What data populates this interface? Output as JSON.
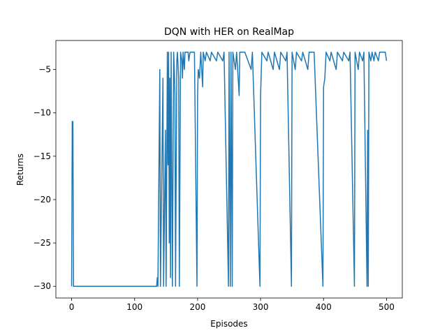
{
  "chart_data": {
    "type": "line",
    "title": "DQN with HER on RealMap",
    "xlabel": "Episodes",
    "ylabel": "Returns",
    "color": "#1f77b4",
    "x": [
      0,
      1,
      2,
      3,
      135,
      136,
      137,
      140,
      141,
      145,
      146,
      149,
      150,
      152,
      153,
      154,
      155,
      156,
      157,
      158,
      160,
      162,
      163,
      164,
      165,
      167,
      168,
      170,
      171,
      173,
      175,
      176,
      177,
      179,
      180,
      185,
      186,
      188,
      195,
      199,
      200,
      201,
      203,
      205,
      208,
      209,
      212,
      214,
      220,
      222,
      230,
      232,
      240,
      242,
      249,
      250,
      252,
      253,
      255,
      256,
      260,
      262,
      266,
      267,
      275,
      285,
      287,
      299,
      300,
      302,
      310,
      312,
      320,
      322,
      330,
      332,
      340,
      342,
      349,
      350,
      355,
      357,
      365,
      367,
      375,
      377,
      385,
      399,
      400,
      402,
      404,
      410,
      412,
      420,
      422,
      430,
      432,
      440,
      442,
      449,
      450,
      455,
      457,
      462,
      464,
      469,
      470,
      471,
      472,
      475,
      477,
      480,
      482,
      487,
      489,
      495,
      498,
      500
    ],
    "values": [
      -30,
      -11,
      -11,
      -30,
      -30,
      -29,
      -30,
      -5,
      -30,
      -6,
      -30,
      -12,
      -30,
      -3,
      -16,
      -3,
      -25,
      -6,
      -29,
      -3,
      -30,
      -3,
      -5,
      -8,
      -30,
      -4,
      -3,
      -6,
      -30,
      -3,
      -4,
      -6,
      -3,
      -5,
      -3,
      -3,
      -4,
      -3,
      -3,
      -30,
      -8,
      -5,
      -6,
      -3,
      -7,
      -3,
      -4,
      -3,
      -4,
      -3,
      -4,
      -3,
      -4,
      -3,
      -30,
      -3,
      -30,
      -3,
      -30,
      -3,
      -5,
      -3,
      -8,
      -3,
      -3,
      -5,
      -3,
      -30,
      -8,
      -3,
      -4,
      -3,
      -5,
      -3,
      -5,
      -3,
      -4,
      -3,
      -30,
      -3,
      -5,
      -3,
      -4,
      -3,
      -5,
      -3,
      -3,
      -30,
      -7,
      -6,
      -3,
      -4,
      -3,
      -5,
      -3,
      -4,
      -3,
      -4,
      -3,
      -30,
      -3,
      -5,
      -3,
      -4,
      -3,
      -30,
      -12,
      -30,
      -3,
      -4,
      -3,
      -4,
      -3,
      -4,
      -3,
      -3,
      -3,
      -4
    ],
    "xlim": [
      -25,
      525
    ],
    "xticks": [
      0,
      100,
      200,
      300,
      400,
      500
    ],
    "ylim": [
      -31.35,
      -1.65
    ],
    "yticks": [
      {
        "value": -30,
        "label": "−30"
      },
      {
        "value": -25,
        "label": "−25"
      },
      {
        "value": -20,
        "label": "−20"
      },
      {
        "value": -15,
        "label": "−15"
      },
      {
        "value": -10,
        "label": "−10"
      },
      {
        "value": -5,
        "label": "−5"
      }
    ]
  }
}
